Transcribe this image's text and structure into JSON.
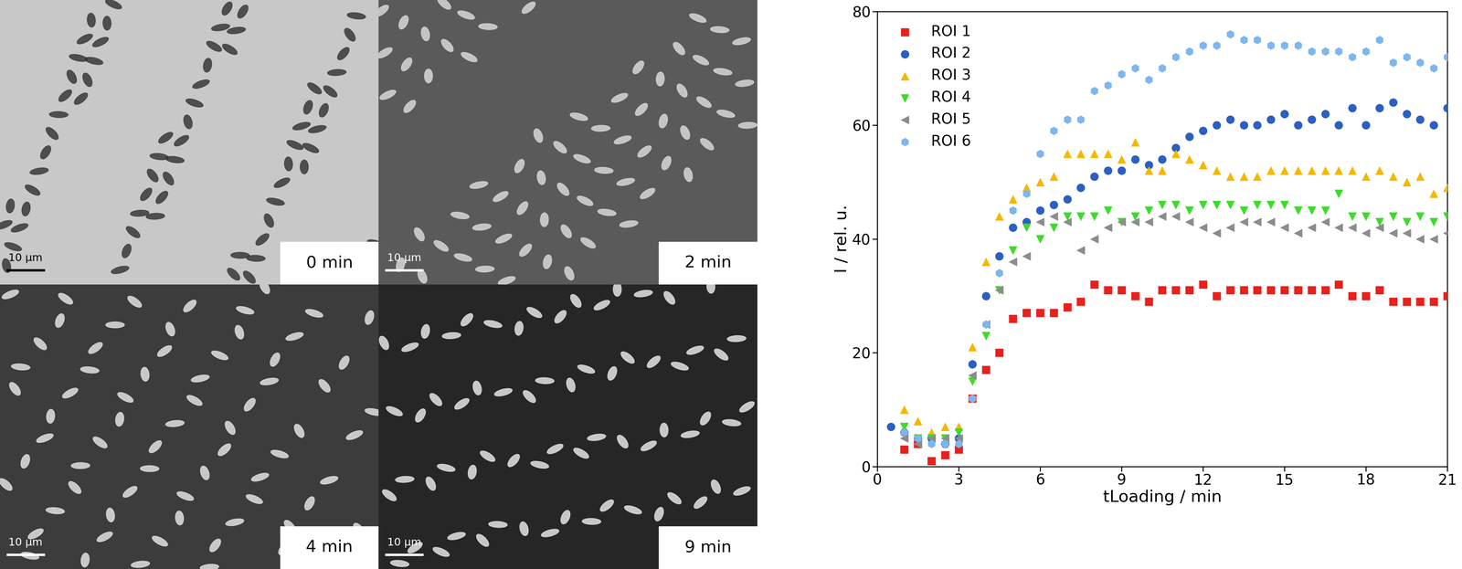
{
  "chart_data": {
    "type": "scatter",
    "x_label": "tLoading / min",
    "y_label": "I / rel. u.",
    "x": [
      0.5,
      1,
      1.5,
      2,
      2.5,
      3,
      3.5,
      4,
      4.5,
      5,
      5.5,
      6,
      6.5,
      7,
      7.5,
      8,
      8.5,
      9,
      9.5,
      10,
      10.5,
      11,
      11.5,
      12,
      12.5,
      13,
      13.5,
      14,
      14.5,
      15,
      15.5,
      16,
      16.5,
      17,
      17.5,
      18,
      18.5,
      19,
      19.5,
      20,
      20.5,
      21
    ],
    "xlim": [
      0,
      21
    ],
    "xticks": [
      0,
      3,
      6,
      9,
      12,
      15,
      18,
      21
    ],
    "ylim": [
      0,
      80
    ],
    "yticks": [
      0,
      20,
      40,
      60,
      80
    ],
    "grid": false,
    "legend": "upper left",
    "series": [
      {
        "name": "ROI 1",
        "color": "#e8211c",
        "marker": "square",
        "values": [
          null,
          3,
          4,
          1,
          2,
          3,
          12,
          17,
          20,
          26,
          27,
          27,
          27,
          28,
          29,
          32,
          31,
          31,
          30,
          29,
          31,
          31,
          31,
          32,
          30,
          31,
          31,
          31,
          31,
          31,
          31,
          31,
          31,
          32,
          30,
          30,
          31,
          29,
          29,
          29,
          29,
          30
        ]
      },
      {
        "name": "ROI 2",
        "color": "#2b5fc1",
        "marker": "circle",
        "values": [
          7,
          6,
          5,
          5,
          4,
          5,
          18,
          30,
          37,
          42,
          43,
          45,
          46,
          47,
          49,
          51,
          52,
          52,
          54,
          53,
          54,
          56,
          58,
          59,
          60,
          61,
          60,
          60,
          61,
          62,
          60,
          61,
          62,
          60,
          63,
          60,
          63,
          64,
          62,
          61,
          60,
          63
        ]
      },
      {
        "name": "ROI 3",
        "color": "#f5b800",
        "marker": "triangle_up",
        "values": [
          null,
          10,
          8,
          6,
          7,
          7,
          21,
          36,
          44,
          47,
          49,
          50,
          51,
          55,
          55,
          55,
          55,
          54,
          57,
          52,
          52,
          55,
          54,
          53,
          52,
          51,
          51,
          51,
          52,
          52,
          52,
          52,
          52,
          52,
          52,
          51,
          52,
          51,
          50,
          51,
          48,
          49
        ]
      },
      {
        "name": "ROI 4",
        "color": "#3ddc2a",
        "marker": "triangle_down",
        "values": [
          null,
          7,
          5,
          5,
          5,
          6,
          15,
          23,
          31,
          38,
          42,
          40,
          42,
          44,
          44,
          44,
          45,
          43,
          44,
          45,
          46,
          46,
          45,
          46,
          46,
          46,
          45,
          46,
          46,
          46,
          45,
          45,
          45,
          48,
          44,
          44,
          43,
          44,
          43,
          44,
          43,
          44
        ]
      },
      {
        "name": "ROI 5",
        "color": "#8c8c8c",
        "marker": "triangle_left",
        "values": [
          null,
          5,
          4,
          5,
          5,
          5,
          16,
          25,
          31,
          36,
          37,
          43,
          44,
          43,
          38,
          40,
          42,
          43,
          43,
          43,
          44,
          44,
          43,
          42,
          41,
          42,
          43,
          43,
          43,
          42,
          41,
          42,
          43,
          42,
          42,
          41,
          42,
          41,
          41,
          40,
          40,
          41
        ]
      },
      {
        "name": "ROI 6",
        "color": "#7eb6ee",
        "marker": "hexagon",
        "values": [
          null,
          6,
          5,
          4,
          4,
          4,
          12,
          25,
          34,
          45,
          48,
          55,
          59,
          61,
          61,
          66,
          67,
          69,
          70,
          68,
          70,
          72,
          73,
          74,
          74,
          76,
          75,
          75,
          74,
          74,
          74,
          73,
          73,
          73,
          72,
          73,
          75,
          71,
          72,
          71,
          70,
          72
        ]
      }
    ]
  },
  "images": [
    {
      "time_label": "0 min",
      "scale_bar": "10 µm"
    },
    {
      "time_label": "2 min",
      "scale_bar": "10 µm"
    },
    {
      "time_label": "4 min",
      "scale_bar": "10 µm"
    },
    {
      "time_label": "9 min",
      "scale_bar": "10 µm"
    }
  ]
}
